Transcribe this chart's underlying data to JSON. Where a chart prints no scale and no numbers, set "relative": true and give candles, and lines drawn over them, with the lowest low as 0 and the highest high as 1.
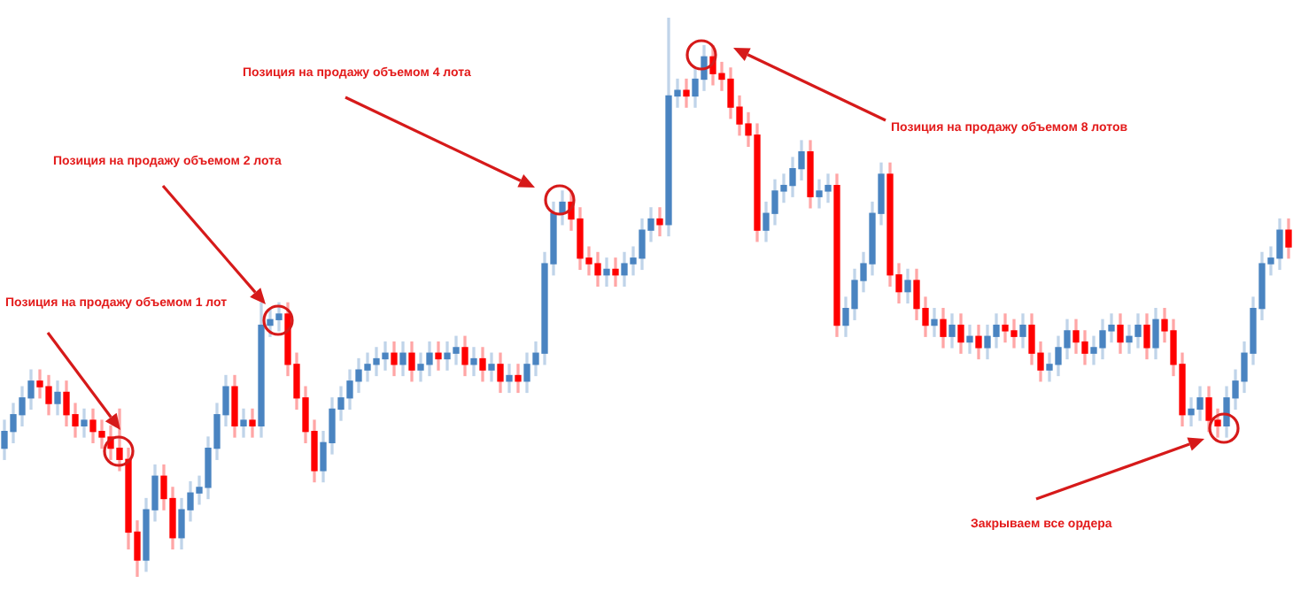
{
  "chart_data": {
    "type": "candlestick",
    "relative": true,
    "categories": [
      null,
      null,
      null,
      null,
      null,
      null,
      null,
      null,
      null,
      null,
      null,
      null,
      null,
      null,
      null,
      null,
      null,
      null,
      null,
      null,
      null,
      null,
      null,
      null,
      null,
      null,
      null,
      null,
      null,
      null,
      null,
      null,
      null,
      null,
      null,
      null,
      null,
      null,
      null,
      null,
      null,
      null,
      null,
      null,
      null,
      null,
      null,
      null,
      null,
      null,
      null,
      null,
      null,
      null,
      null,
      null,
      null,
      null,
      null,
      null,
      null,
      null,
      null,
      null,
      null,
      null,
      null,
      null,
      null,
      null,
      null,
      null,
      null,
      null,
      null,
      null,
      null,
      null,
      null,
      null,
      null,
      null,
      null,
      null,
      null,
      null,
      null,
      null,
      null,
      null,
      null,
      null,
      null,
      null,
      null,
      null,
      null,
      null,
      null,
      null,
      null,
      null,
      null,
      null,
      null,
      null,
      null,
      null,
      null,
      null,
      null,
      null,
      null,
      null,
      null,
      null,
      null,
      null,
      null,
      null,
      null,
      null,
      null,
      null,
      null,
      null,
      null,
      null,
      null,
      null,
      null,
      null,
      null,
      null,
      null,
      null,
      null,
      null,
      null,
      null,
      null,
      null,
      null,
      null,
      null,
      null
    ],
    "ohlc": [
      [
        0.23,
        0.28,
        0.21,
        0.26
      ],
      [
        0.26,
        0.31,
        0.24,
        0.29
      ],
      [
        0.29,
        0.34,
        0.27,
        0.32
      ],
      [
        0.32,
        0.37,
        0.3,
        0.35
      ],
      [
        0.35,
        0.37,
        0.32,
        0.34
      ],
      [
        0.34,
        0.36,
        0.29,
        0.31
      ],
      [
        0.31,
        0.35,
        0.29,
        0.33
      ],
      [
        0.33,
        0.35,
        0.27,
        0.29
      ],
      [
        0.29,
        0.31,
        0.25,
        0.27
      ],
      [
        0.27,
        0.3,
        0.25,
        0.28
      ],
      [
        0.28,
        0.3,
        0.24,
        0.26
      ],
      [
        0.26,
        0.28,
        0.23,
        0.25
      ],
      [
        0.25,
        0.27,
        0.21,
        0.23
      ],
      [
        0.23,
        0.3,
        0.19,
        0.21
      ],
      [
        0.21,
        0.23,
        0.05,
        0.08
      ],
      [
        0.08,
        0.1,
        0.0,
        0.03
      ],
      [
        0.03,
        0.14,
        0.01,
        0.12
      ],
      [
        0.12,
        0.2,
        0.1,
        0.18
      ],
      [
        0.18,
        0.2,
        0.12,
        0.14
      ],
      [
        0.14,
        0.16,
        0.05,
        0.07
      ],
      [
        0.07,
        0.14,
        0.05,
        0.12
      ],
      [
        0.12,
        0.17,
        0.1,
        0.15
      ],
      [
        0.15,
        0.18,
        0.13,
        0.16
      ],
      [
        0.16,
        0.25,
        0.14,
        0.23
      ],
      [
        0.23,
        0.31,
        0.21,
        0.29
      ],
      [
        0.29,
        0.36,
        0.27,
        0.34
      ],
      [
        0.34,
        0.36,
        0.25,
        0.27
      ],
      [
        0.27,
        0.3,
        0.25,
        0.28
      ],
      [
        0.28,
        0.3,
        0.25,
        0.27
      ],
      [
        0.27,
        0.49,
        0.25,
        0.45
      ],
      [
        0.45,
        0.48,
        0.43,
        0.46
      ],
      [
        0.46,
        0.49,
        0.44,
        0.47
      ],
      [
        0.47,
        0.49,
        0.36,
        0.38
      ],
      [
        0.38,
        0.4,
        0.3,
        0.32
      ],
      [
        0.32,
        0.34,
        0.24,
        0.26
      ],
      [
        0.26,
        0.28,
        0.17,
        0.19
      ],
      [
        0.19,
        0.26,
        0.17,
        0.24
      ],
      [
        0.24,
        0.32,
        0.22,
        0.3
      ],
      [
        0.3,
        0.34,
        0.28,
        0.32
      ],
      [
        0.32,
        0.37,
        0.3,
        0.35
      ],
      [
        0.35,
        0.39,
        0.33,
        0.37
      ],
      [
        0.37,
        0.4,
        0.35,
        0.38
      ],
      [
        0.38,
        0.41,
        0.36,
        0.39
      ],
      [
        0.39,
        0.42,
        0.37,
        0.4
      ],
      [
        0.4,
        0.42,
        0.36,
        0.38
      ],
      [
        0.38,
        0.42,
        0.36,
        0.4
      ],
      [
        0.4,
        0.42,
        0.35,
        0.37
      ],
      [
        0.37,
        0.4,
        0.35,
        0.38
      ],
      [
        0.38,
        0.42,
        0.36,
        0.4
      ],
      [
        0.4,
        0.42,
        0.37,
        0.39
      ],
      [
        0.39,
        0.42,
        0.37,
        0.4
      ],
      [
        0.4,
        0.43,
        0.38,
        0.41
      ],
      [
        0.41,
        0.43,
        0.36,
        0.38
      ],
      [
        0.38,
        0.41,
        0.36,
        0.39
      ],
      [
        0.39,
        0.41,
        0.35,
        0.37
      ],
      [
        0.37,
        0.4,
        0.35,
        0.38
      ],
      [
        0.38,
        0.4,
        0.33,
        0.35
      ],
      [
        0.35,
        0.38,
        0.33,
        0.36
      ],
      [
        0.36,
        0.38,
        0.33,
        0.35
      ],
      [
        0.35,
        0.4,
        0.33,
        0.38
      ],
      [
        0.38,
        0.42,
        0.36,
        0.4
      ],
      [
        0.4,
        0.58,
        0.38,
        0.56
      ],
      [
        0.56,
        0.67,
        0.54,
        0.65
      ],
      [
        0.65,
        0.69,
        0.63,
        0.67
      ],
      [
        0.67,
        0.69,
        0.62,
        0.64
      ],
      [
        0.64,
        0.66,
        0.55,
        0.57
      ],
      [
        0.57,
        0.59,
        0.54,
        0.56
      ],
      [
        0.56,
        0.58,
        0.52,
        0.54
      ],
      [
        0.54,
        0.57,
        0.52,
        0.55
      ],
      [
        0.55,
        0.57,
        0.52,
        0.54
      ],
      [
        0.54,
        0.58,
        0.52,
        0.56
      ],
      [
        0.56,
        0.59,
        0.54,
        0.57
      ],
      [
        0.57,
        0.64,
        0.55,
        0.62
      ],
      [
        0.62,
        0.66,
        0.6,
        0.64
      ],
      [
        0.64,
        0.66,
        0.61,
        0.63
      ],
      [
        0.63,
        1.0,
        0.61,
        0.86
      ],
      [
        0.86,
        0.89,
        0.84,
        0.87
      ],
      [
        0.87,
        0.89,
        0.84,
        0.86
      ],
      [
        0.86,
        0.91,
        0.84,
        0.89
      ],
      [
        0.89,
        0.95,
        0.87,
        0.93
      ],
      [
        0.93,
        0.95,
        0.88,
        0.9
      ],
      [
        0.9,
        0.92,
        0.87,
        0.89
      ],
      [
        0.89,
        0.91,
        0.82,
        0.84
      ],
      [
        0.84,
        0.86,
        0.79,
        0.81
      ],
      [
        0.81,
        0.83,
        0.77,
        0.79
      ],
      [
        0.79,
        0.81,
        0.6,
        0.62
      ],
      [
        0.62,
        0.67,
        0.6,
        0.65
      ],
      [
        0.65,
        0.71,
        0.63,
        0.69
      ],
      [
        0.69,
        0.72,
        0.67,
        0.7
      ],
      [
        0.7,
        0.75,
        0.68,
        0.73
      ],
      [
        0.73,
        0.78,
        0.71,
        0.76
      ],
      [
        0.76,
        0.78,
        0.66,
        0.68
      ],
      [
        0.68,
        0.71,
        0.66,
        0.69
      ],
      [
        0.69,
        0.72,
        0.67,
        0.7
      ],
      [
        0.7,
        0.72,
        0.43,
        0.45
      ],
      [
        0.45,
        0.5,
        0.43,
        0.48
      ],
      [
        0.48,
        0.55,
        0.46,
        0.53
      ],
      [
        0.53,
        0.58,
        0.51,
        0.56
      ],
      [
        0.56,
        0.67,
        0.54,
        0.65
      ],
      [
        0.65,
        0.74,
        0.63,
        0.72
      ],
      [
        0.72,
        0.74,
        0.52,
        0.54
      ],
      [
        0.54,
        0.56,
        0.49,
        0.51
      ],
      [
        0.51,
        0.55,
        0.49,
        0.53
      ],
      [
        0.53,
        0.55,
        0.46,
        0.48
      ],
      [
        0.48,
        0.5,
        0.43,
        0.45
      ],
      [
        0.45,
        0.48,
        0.43,
        0.46
      ],
      [
        0.46,
        0.48,
        0.41,
        0.43
      ],
      [
        0.43,
        0.47,
        0.41,
        0.45
      ],
      [
        0.45,
        0.47,
        0.4,
        0.42
      ],
      [
        0.42,
        0.45,
        0.4,
        0.43
      ],
      [
        0.43,
        0.45,
        0.39,
        0.41
      ],
      [
        0.41,
        0.45,
        0.39,
        0.43
      ],
      [
        0.43,
        0.47,
        0.41,
        0.45
      ],
      [
        0.45,
        0.47,
        0.42,
        0.44
      ],
      [
        0.44,
        0.46,
        0.41,
        0.43
      ],
      [
        0.43,
        0.47,
        0.41,
        0.45
      ],
      [
        0.45,
        0.47,
        0.38,
        0.4
      ],
      [
        0.4,
        0.42,
        0.35,
        0.37
      ],
      [
        0.37,
        0.4,
        0.35,
        0.38
      ],
      [
        0.38,
        0.43,
        0.36,
        0.41
      ],
      [
        0.41,
        0.46,
        0.39,
        0.44
      ],
      [
        0.44,
        0.46,
        0.4,
        0.42
      ],
      [
        0.42,
        0.44,
        0.38,
        0.4
      ],
      [
        0.4,
        0.43,
        0.38,
        0.41
      ],
      [
        0.41,
        0.46,
        0.39,
        0.44
      ],
      [
        0.44,
        0.47,
        0.42,
        0.45
      ],
      [
        0.45,
        0.47,
        0.4,
        0.42
      ],
      [
        0.42,
        0.45,
        0.4,
        0.43
      ],
      [
        0.43,
        0.47,
        0.41,
        0.45
      ],
      [
        0.45,
        0.47,
        0.39,
        0.41
      ],
      [
        0.41,
        0.48,
        0.39,
        0.46
      ],
      [
        0.46,
        0.48,
        0.42,
        0.44
      ],
      [
        0.44,
        0.46,
        0.36,
        0.38
      ],
      [
        0.38,
        0.4,
        0.27,
        0.29
      ],
      [
        0.29,
        0.32,
        0.27,
        0.3
      ],
      [
        0.3,
        0.34,
        0.28,
        0.32
      ],
      [
        0.32,
        0.34,
        0.26,
        0.28
      ],
      [
        0.28,
        0.3,
        0.25,
        0.27
      ],
      [
        0.27,
        0.34,
        0.25,
        0.32
      ],
      [
        0.32,
        0.37,
        0.3,
        0.35
      ],
      [
        0.35,
        0.42,
        0.33,
        0.4
      ],
      [
        0.4,
        0.5,
        0.38,
        0.48
      ],
      [
        0.48,
        0.58,
        0.46,
        0.56
      ],
      [
        0.56,
        0.59,
        0.54,
        0.57
      ],
      [
        0.57,
        0.64,
        0.55,
        0.62
      ],
      [
        0.62,
        0.64,
        0.57,
        0.59
      ]
    ],
    "colors": [
      "#4a84c1",
      "#4a84c1",
      "#4a84c1",
      "#4a84c1",
      "#ff0000",
      "#ff0000",
      "#4a84c1",
      "#ff0000",
      "#ff0000",
      "#4a84c1",
      "#ff0000",
      "#ff0000",
      "#ff0000",
      "#ff0000",
      "#ff0000",
      "#ff0000",
      "#4a84c1",
      "#4a84c1",
      "#ff0000",
      "#ff0000",
      "#4a84c1",
      "#4a84c1",
      "#4a84c1",
      "#4a84c1",
      "#4a84c1",
      "#4a84c1",
      "#ff0000",
      "#4a84c1",
      "#ff0000",
      "#4a84c1",
      "#4a84c1",
      "#4a84c1",
      "#ff0000",
      "#ff0000",
      "#ff0000",
      "#ff0000",
      "#4a84c1",
      "#4a84c1",
      "#4a84c1",
      "#4a84c1",
      "#4a84c1",
      "#4a84c1",
      "#4a84c1",
      "#4a84c1",
      "#ff0000",
      "#4a84c1",
      "#ff0000",
      "#4a84c1",
      "#4a84c1",
      "#ff0000",
      "#4a84c1",
      "#4a84c1",
      "#ff0000",
      "#4a84c1",
      "#ff0000",
      "#4a84c1",
      "#ff0000",
      "#4a84c1",
      "#ff0000",
      "#4a84c1",
      "#4a84c1",
      "#4a84c1",
      "#4a84c1",
      "#4a84c1",
      "#ff0000",
      "#ff0000",
      "#ff0000",
      "#ff0000",
      "#4a84c1",
      "#ff0000",
      "#4a84c1",
      "#4a84c1",
      "#4a84c1",
      "#4a84c1",
      "#ff0000",
      "#4a84c1",
      "#4a84c1",
      "#ff0000",
      "#4a84c1",
      "#4a84c1",
      "#ff0000",
      "#ff0000",
      "#ff0000",
      "#ff0000",
      "#ff0000",
      "#ff0000",
      "#4a84c1",
      "#4a84c1",
      "#4a84c1",
      "#4a84c1",
      "#4a84c1",
      "#ff0000",
      "#4a84c1",
      "#4a84c1",
      "#ff0000",
      "#4a84c1",
      "#4a84c1",
      "#4a84c1",
      "#4a84c1",
      "#4a84c1",
      "#ff0000",
      "#ff0000",
      "#4a84c1",
      "#ff0000",
      "#ff0000",
      "#4a84c1",
      "#ff0000",
      "#4a84c1",
      "#ff0000",
      "#4a84c1",
      "#ff0000",
      "#4a84c1",
      "#4a84c1",
      "#ff0000",
      "#ff0000",
      "#4a84c1",
      "#ff0000",
      "#ff0000",
      "#4a84c1",
      "#4a84c1",
      "#4a84c1",
      "#ff0000",
      "#ff0000",
      "#4a84c1",
      "#4a84c1",
      "#4a84c1",
      "#ff0000",
      "#4a84c1",
      "#4a84c1",
      "#ff0000",
      "#4a84c1",
      "#ff0000",
      "#ff0000",
      "#ff0000",
      "#4a84c1",
      "#4a84c1",
      "#ff0000",
      "#ff0000",
      "#4a84c1",
      "#4a84c1",
      "#4a84c1",
      "#4a84c1",
      "#4a84c1",
      "#4a84c1",
      "#4a84c1",
      "#ff0000"
    ],
    "annotations": [
      "Позиция на продажу объемом 1 лот",
      "Позиция на продажу объемом 2 лота",
      "Позиция на продажу объемом 4 лота",
      "Позиция на продажу объемом 8 лотов",
      "Закрываем все ордера"
    ]
  }
}
